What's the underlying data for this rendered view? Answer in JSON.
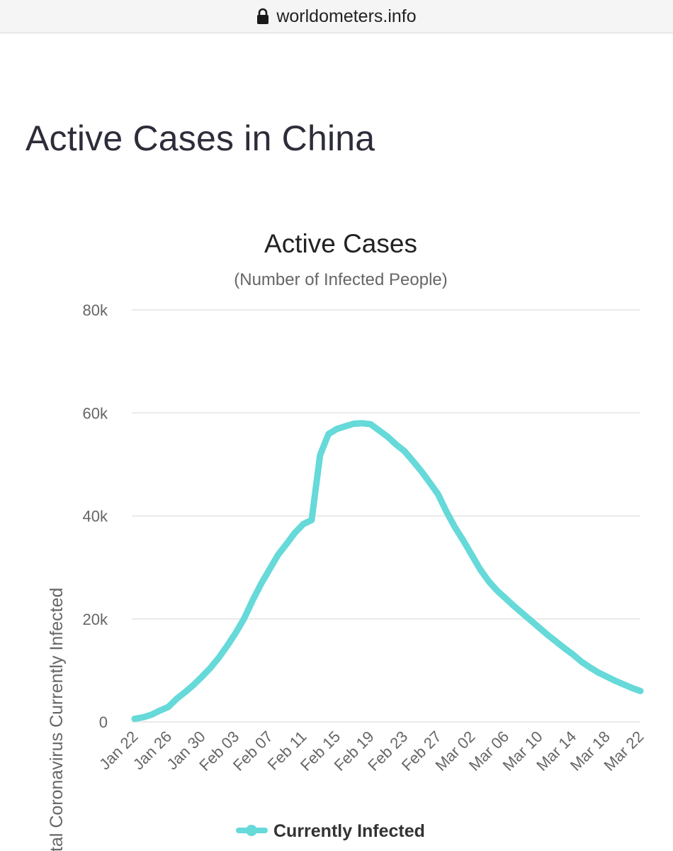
{
  "browser": {
    "url": "worldometers.info"
  },
  "page": {
    "title": "Active Cases in China"
  },
  "colors": {
    "series": "#66d9d9",
    "grid": "#e3e3e3",
    "axis": "#c9d1e0",
    "text": "#666666"
  },
  "chart_data": {
    "type": "line",
    "title": "Active Cases",
    "subtitle": "(Number of Infected People)",
    "ylabel": "Total Coronavirus Currently Infected",
    "xlabel": "",
    "ylim": [
      0,
      80000
    ],
    "yticks": [
      0,
      20000,
      40000,
      60000,
      80000
    ],
    "ytick_labels": [
      "0",
      "20k",
      "40k",
      "60k",
      "80k"
    ],
    "x_tick_labels": [
      "Jan 22",
      "Jan 26",
      "Jan 30",
      "Feb 03",
      "Feb 07",
      "Feb 11",
      "Feb 15",
      "Feb 19",
      "Feb 23",
      "Feb 27",
      "Mar 02",
      "Mar 06",
      "Mar 10",
      "Mar 14",
      "Mar 18",
      "Mar 22"
    ],
    "grid": true,
    "legend_position": "bottom-center",
    "series": [
      {
        "name": "Currently Infected",
        "color": "#66d9d9",
        "x": [
          "Jan 22",
          "Jan 23",
          "Jan 24",
          "Jan 25",
          "Jan 26",
          "Jan 27",
          "Jan 28",
          "Jan 29",
          "Jan 30",
          "Jan 31",
          "Feb 01",
          "Feb 02",
          "Feb 03",
          "Feb 04",
          "Feb 05",
          "Feb 06",
          "Feb 07",
          "Feb 08",
          "Feb 09",
          "Feb 10",
          "Feb 11",
          "Feb 12",
          "Feb 13",
          "Feb 14",
          "Feb 15",
          "Feb 16",
          "Feb 17",
          "Feb 18",
          "Feb 19",
          "Feb 20",
          "Feb 21",
          "Feb 22",
          "Feb 23",
          "Feb 24",
          "Feb 25",
          "Feb 26",
          "Feb 27",
          "Feb 28",
          "Feb 29",
          "Mar 01",
          "Mar 02",
          "Mar 03",
          "Mar 04",
          "Mar 05",
          "Mar 06",
          "Mar 07",
          "Mar 08",
          "Mar 09",
          "Mar 10",
          "Mar 11",
          "Mar 12",
          "Mar 13",
          "Mar 14",
          "Mar 15",
          "Mar 16",
          "Mar 17",
          "Mar 18",
          "Mar 19",
          "Mar 20",
          "Mar 21",
          "Mar 22"
        ],
        "values": [
          600,
          900,
          1400,
          2200,
          2900,
          4500,
          5800,
          7200,
          8800,
          10500,
          12500,
          14800,
          17300,
          20100,
          23600,
          26800,
          29600,
          32400,
          34500,
          36700,
          38400,
          39200,
          51800,
          55900,
          56900,
          57400,
          57900,
          58000,
          57800,
          56600,
          55400,
          53900,
          52600,
          50700,
          48700,
          46500,
          44200,
          40800,
          37800,
          35200,
          32400,
          29600,
          27300,
          25500,
          24000,
          22500,
          21100,
          19700,
          18300,
          16900,
          15600,
          14300,
          13100,
          11700,
          10600,
          9600,
          8800,
          8000,
          7300,
          6600,
          6000
        ]
      }
    ]
  }
}
